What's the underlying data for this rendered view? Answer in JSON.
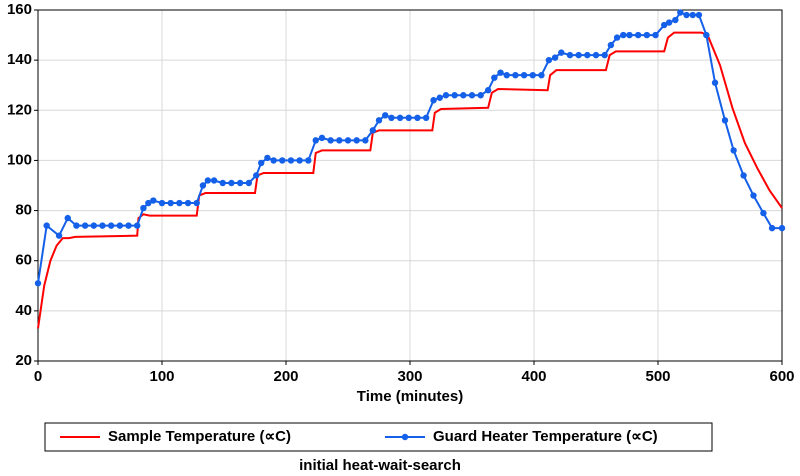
{
  "chart_data": {
    "type": "line",
    "xlabel": "Time (minutes)",
    "caption": "initial heat-wait-search",
    "xlim": [
      0,
      600
    ],
    "xticks": [
      0,
      100,
      200,
      300,
      400,
      500,
      600
    ],
    "ylim": [
      20,
      160
    ],
    "yticks": [
      20,
      40,
      60,
      80,
      100,
      120,
      140,
      160
    ],
    "grid": true,
    "series": [
      {
        "name": "Sample Temperature (∝C)",
        "color": "#ff0000",
        "marker": false,
        "x": [
          0,
          5,
          10,
          15,
          20,
          25,
          30,
          80,
          81,
          85,
          90,
          128,
          130,
          135,
          175,
          177,
          182,
          222,
          224,
          229,
          268,
          270,
          275,
          318,
          320,
          325,
          363,
          366,
          371,
          411,
          413,
          418,
          458,
          461,
          466,
          505,
          508,
          513,
          535,
          540,
          550,
          560,
          570,
          580,
          590,
          600
        ],
        "values": [
          33,
          50,
          60,
          66,
          69,
          69,
          69.5,
          70,
          77,
          78.5,
          78,
          78,
          86,
          87,
          87,
          94,
          95,
          95,
          103,
          104,
          104,
          111,
          112,
          112,
          119,
          120.5,
          121,
          127,
          128.5,
          128,
          134,
          136,
          136,
          142,
          143.5,
          143.5,
          149,
          151,
          151,
          150,
          138,
          121,
          107,
          97,
          88,
          81
        ]
      },
      {
        "name": "Guard Heater Temperature (∝C)",
        "color": "#1560e8",
        "marker": true,
        "x": [
          0,
          7,
          17,
          24,
          31,
          38,
          45,
          52,
          59,
          66,
          73,
          80,
          85,
          89,
          93,
          100,
          107,
          114,
          121,
          128,
          133,
          137,
          142,
          149,
          156,
          163,
          170,
          176,
          180,
          185,
          190,
          197,
          204,
          211,
          218,
          224,
          229,
          236,
          243,
          250,
          257,
          264,
          270,
          275,
          280,
          285,
          292,
          299,
          306,
          313,
          319,
          324,
          329,
          336,
          343,
          350,
          357,
          363,
          368,
          373,
          378,
          385,
          392,
          399,
          406,
          412,
          417,
          422,
          429,
          436,
          443,
          450,
          457,
          462,
          467,
          472,
          477,
          484,
          491,
          498,
          505,
          509,
          514,
          518,
          523,
          528,
          533,
          539,
          546,
          554,
          561,
          569,
          577,
          585,
          592,
          600
        ],
        "values": [
          51,
          74,
          70,
          77,
          74,
          74,
          74,
          74,
          74,
          74,
          74,
          74,
          81,
          83,
          84,
          83,
          83,
          83,
          83,
          83,
          90,
          92,
          92,
          91,
          91,
          91,
          91,
          94,
          99,
          101,
          100,
          100,
          100,
          100,
          100,
          108,
          109,
          108,
          108,
          108,
          108,
          108,
          112,
          116,
          118,
          117,
          117,
          117,
          117,
          117,
          124,
          125,
          126,
          126,
          126,
          126,
          126,
          128,
          133,
          135,
          134,
          134,
          134,
          134,
          134,
          140,
          141,
          143,
          142,
          142,
          142,
          142,
          142,
          146,
          149,
          150,
          150,
          150,
          150,
          150,
          154,
          155,
          156,
          159,
          158,
          158,
          158,
          150,
          131,
          116,
          104,
          94,
          86,
          79,
          73,
          73
        ]
      }
    ]
  }
}
